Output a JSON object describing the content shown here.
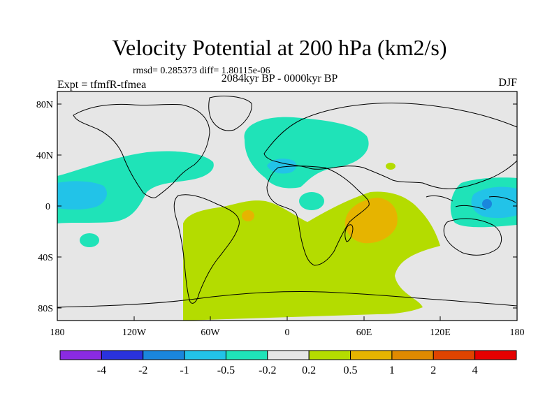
{
  "title": "Velocity Potential at 200 hPa (km2/s)",
  "stats": "rmsd= 0.285373 diff= 1.80115e-06",
  "experiment": "Expt = tfmfR-tfmea",
  "period": "2084kyr BP - 0000kyr BP",
  "season": "DJF",
  "lat_labels": [
    "80N",
    "40N",
    "0",
    "40S",
    "80S"
  ],
  "lon_labels": [
    "180",
    "120W",
    "60W",
    "0",
    "60E",
    "120E",
    "180"
  ],
  "colorbar": {
    "labels": [
      "-4",
      "-2",
      "-1",
      "-0.5",
      "-0.2",
      "0.2",
      "0.5",
      "1",
      "2",
      "4"
    ],
    "colors": [
      "#8a2be2",
      "#2a32dd",
      "#1a86dc",
      "#22c3e8",
      "#1fe3b8",
      "#e6e6e6",
      "#b4dc00",
      "#e6b400",
      "#e08a00",
      "#e04400",
      "#e60000"
    ]
  },
  "land_color": "#e6e6e6"
}
